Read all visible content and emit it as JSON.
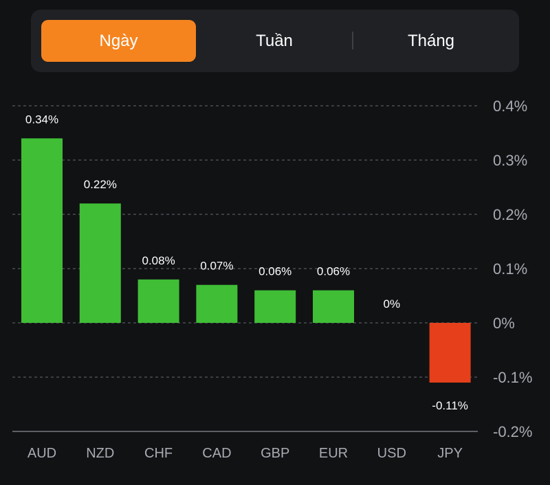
{
  "tabs": [
    {
      "label": "Ngày",
      "active": true
    },
    {
      "label": "Tuần",
      "active": false
    },
    {
      "label": "Tháng",
      "active": false
    }
  ],
  "colors": {
    "background": "#111214",
    "accent": "#f5841f",
    "positive": "#3fbe36",
    "negative": "#e5401b",
    "text": "#ffffff",
    "axis_text": "#a9abb3",
    "grid": "#55585e"
  },
  "chart_data": {
    "type": "bar",
    "categories": [
      "AUD",
      "NZD",
      "CHF",
      "CAD",
      "GBP",
      "EUR",
      "USD",
      "JPY"
    ],
    "values": [
      0.34,
      0.22,
      0.08,
      0.07,
      0.06,
      0.06,
      0,
      -0.11
    ],
    "data_labels": [
      "0.34%",
      "0.22%",
      "0.08%",
      "0.07%",
      "0.06%",
      "0.06%",
      "0%",
      "-0.11%"
    ],
    "y_ticks": [
      0.4,
      0.3,
      0.2,
      0.1,
      0,
      -0.1,
      -0.2
    ],
    "y_tick_labels": [
      "0.4%",
      "0.3%",
      "0.2%",
      "0.1%",
      "0%",
      "-0.1%",
      "-0.2%"
    ],
    "ylim": [
      -0.2,
      0.4
    ],
    "grid": true,
    "y_axis_side": "right"
  }
}
